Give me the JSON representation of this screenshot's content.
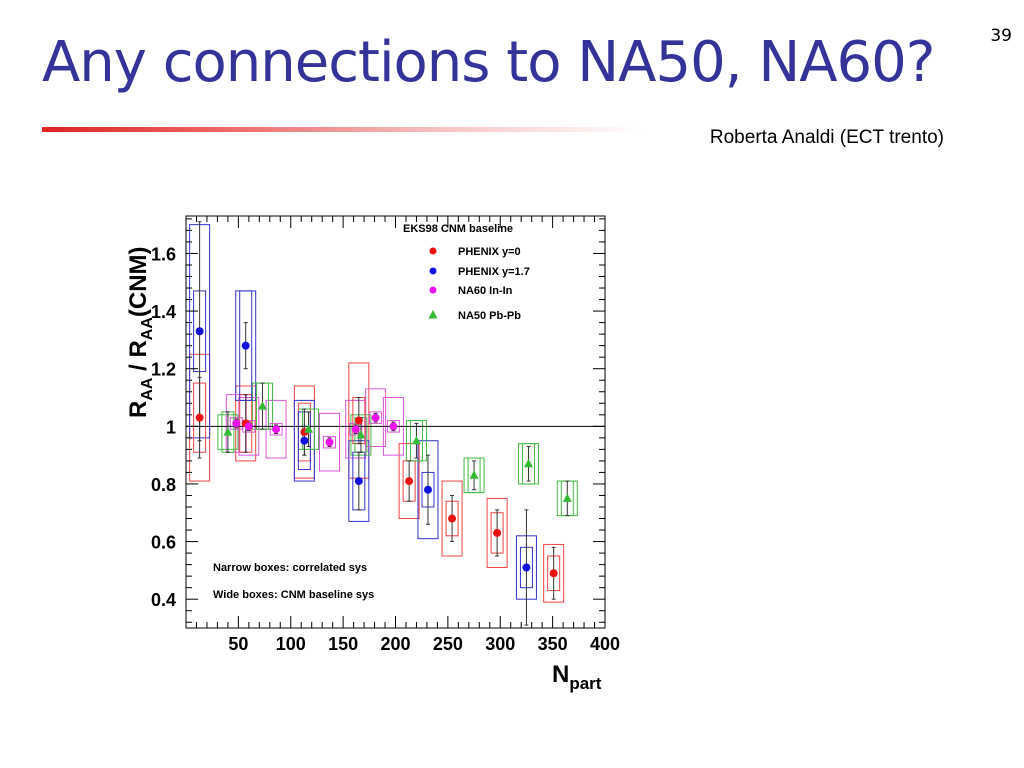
{
  "slide": {
    "title": "Any connections to NA50, NA60?",
    "number": "39",
    "author": "Roberta Analdi (ECT trento)"
  },
  "chart_data": {
    "type": "scatter",
    "xlabel_main": "N",
    "xlabel_sub": "part",
    "ylabel_parts": [
      "R",
      "AA",
      " / R",
      "AA",
      "(CNM)"
    ],
    "xlim": [
      0,
      400
    ],
    "ylim": [
      0.3,
      1.73
    ],
    "xticks": [
      50,
      100,
      150,
      200,
      250,
      300,
      350,
      400
    ],
    "yticks": [
      0.4,
      0.6,
      0.8,
      1.0,
      1.2,
      1.4,
      1.6
    ],
    "ytick_labels": [
      "0.4",
      "0.6",
      "0.8",
      "1",
      "1.2",
      "1.4",
      "1.6"
    ],
    "reference_line": 1.0,
    "legend": {
      "title": "EKS98 CNM baseline",
      "placement": "top-right"
    },
    "annotations": [
      "Narrow boxes: correlated sys",
      "Wide boxes: CNM baseline sys"
    ],
    "series": [
      {
        "name": "PHENIX y=0",
        "color": "#ee1111",
        "marker": "circle",
        "points": [
          {
            "x": 13,
            "y": 1.03,
            "err": 0.14,
            "sys": 0.12,
            "cnm": 0.22
          },
          {
            "x": 57,
            "y": 1.01,
            "err": 0.1,
            "sys": 0.1,
            "cnm": 0.13
          },
          {
            "x": 113,
            "y": 0.98,
            "err": 0.08,
            "sys": 0.1,
            "cnm": 0.16
          },
          {
            "x": 165,
            "y": 1.02,
            "err": 0.08,
            "sys": 0.08,
            "cnm": 0.2
          },
          {
            "x": 213,
            "y": 0.81,
            "err": 0.07,
            "sys": 0.07,
            "cnm": 0.13
          },
          {
            "x": 254,
            "y": 0.68,
            "err": 0.08,
            "sys": 0.06,
            "cnm": 0.13
          },
          {
            "x": 297,
            "y": 0.63,
            "err": 0.08,
            "sys": 0.07,
            "cnm": 0.12
          },
          {
            "x": 351,
            "y": 0.49,
            "err": 0.09,
            "sys": 0.06,
            "cnm": 0.1
          }
        ]
      },
      {
        "name": "PHENIX y=1.7",
        "color": "#1111dd",
        "marker": "circle",
        "points": [
          {
            "x": 13,
            "y": 1.33,
            "err": 0.38,
            "sys": 0.14,
            "cnm": 0.37
          },
          {
            "x": 57,
            "y": 1.28,
            "err": 0.08,
            "sys": 0.19,
            "cnm": 0.19
          },
          {
            "x": 113,
            "y": 0.95,
            "err": 0.05,
            "sys": 0.1,
            "cnm": 0.14
          },
          {
            "x": 165,
            "y": 0.81,
            "err": 0.1,
            "sys": 0.1,
            "cnm": 0.14
          },
          {
            "x": 231,
            "y": 0.78,
            "err": 0.12,
            "sys": 0.06,
            "cnm": 0.17
          },
          {
            "x": 325,
            "y": 0.51,
            "err": 0.2,
            "sys": 0.07,
            "cnm": 0.11
          }
        ]
      },
      {
        "name": "NA60 In-In",
        "color": "#ee11ee",
        "marker": "circle",
        "points": [
          {
            "x": 48,
            "y": 1.01,
            "err": 0.015,
            "sys": 0.02,
            "cnm": 0.1
          },
          {
            "x": 60,
            "y": 1.0,
            "err": 0.015,
            "sys": 0.02,
            "cnm": 0.1
          },
          {
            "x": 86,
            "y": 0.99,
            "err": 0.015,
            "sys": 0.02,
            "cnm": 0.1
          },
          {
            "x": 137,
            "y": 0.945,
            "err": 0.015,
            "sys": 0.02,
            "cnm": 0.1
          },
          {
            "x": 162,
            "y": 0.99,
            "err": 0.015,
            "sys": 0.02,
            "cnm": 0.1
          },
          {
            "x": 181,
            "y": 1.03,
            "err": 0.015,
            "sys": 0.02,
            "cnm": 0.1
          },
          {
            "x": 198,
            "y": 1.0,
            "err": 0.015,
            "sys": 0.02,
            "cnm": 0.1
          }
        ]
      },
      {
        "name": "NA50 Pb-Pb",
        "color": "#33bb33",
        "marker": "triangle",
        "points": [
          {
            "x": 40,
            "y": 0.98,
            "err": 0.07,
            "sys": 0.07,
            "cnm": 0.06
          },
          {
            "x": 73,
            "y": 1.07,
            "err": 0.08,
            "sys": 0.08,
            "cnm": 0.08
          },
          {
            "x": 117,
            "y": 0.99,
            "err": 0.06,
            "sys": 0.07,
            "cnm": 0.07
          },
          {
            "x": 167,
            "y": 0.97,
            "err": 0.06,
            "sys": 0.06,
            "cnm": 0.07
          },
          {
            "x": 220,
            "y": 0.95,
            "err": 0.06,
            "sys": 0.07,
            "cnm": 0.07
          },
          {
            "x": 275,
            "y": 0.83,
            "err": 0.05,
            "sys": 0.06,
            "cnm": 0.06
          },
          {
            "x": 327,
            "y": 0.87,
            "err": 0.06,
            "sys": 0.07,
            "cnm": 0.07
          },
          {
            "x": 364,
            "y": 0.75,
            "err": 0.06,
            "sys": 0.06,
            "cnm": 0.06
          }
        ]
      }
    ]
  }
}
